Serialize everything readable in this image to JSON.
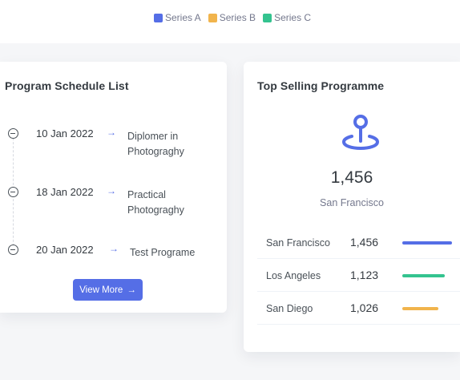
{
  "legend": [
    {
      "label": "Series A",
      "color": "#556ee6"
    },
    {
      "label": "Series B",
      "color": "#f1b44c"
    },
    {
      "label": "Series C",
      "color": "#34c38f"
    }
  ],
  "schedule": {
    "title": "Program Schedule List",
    "items": [
      {
        "date": "10 Jan 2022",
        "arrow": "→",
        "title": "Diplomer in Photograghy"
      },
      {
        "date": "18 Jan 2022",
        "arrow": "→",
        "title": "Practical Photograghy"
      },
      {
        "date": "20 Jan 2022",
        "arrow": "→",
        "title": "Test Programe"
      }
    ],
    "button_label": "View More",
    "button_arrow": "→"
  },
  "top_selling": {
    "title": "Top Selling Programme",
    "icon": "map-pin-icon",
    "value": "1,456",
    "city": "San Francisco",
    "rows": [
      {
        "city": "San Francisco",
        "value": "1,456",
        "color": "#556ee6",
        "fraction": 1.0
      },
      {
        "city": "Los Angeles",
        "value": "1,123",
        "color": "#34c38f",
        "fraction": 0.85
      },
      {
        "city": "San Diego",
        "value": "1,026",
        "color": "#f1b44c",
        "fraction": 0.73
      }
    ]
  }
}
